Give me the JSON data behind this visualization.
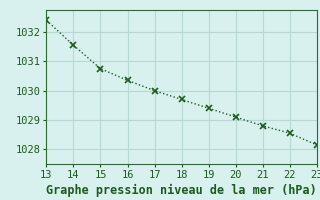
{
  "x": [
    13,
    14,
    15,
    16,
    17,
    18,
    19,
    20,
    21,
    22,
    23
  ],
  "y": [
    1032.4,
    1031.55,
    1030.75,
    1030.35,
    1030.0,
    1029.7,
    1029.4,
    1029.1,
    1028.8,
    1028.55,
    1028.15
  ],
  "xlim": [
    13,
    23
  ],
  "ylim": [
    1027.5,
    1032.75
  ],
  "xticks": [
    13,
    14,
    15,
    16,
    17,
    18,
    19,
    20,
    21,
    22,
    23
  ],
  "yticks": [
    1028,
    1029,
    1030,
    1031,
    1032
  ],
  "xlabel": "Graphe pression niveau de la mer (hPa)",
  "line_color": "#1a5c1a",
  "marker": "x",
  "bg_color": "#d8f0ee",
  "grid_color": "#b8d8d4",
  "tick_color": "#1a5c1a",
  "label_color": "#1a5c1a",
  "border_color": "#2a6e2a",
  "tick_fontsize": 7.5,
  "xlabel_fontsize": 8.5
}
